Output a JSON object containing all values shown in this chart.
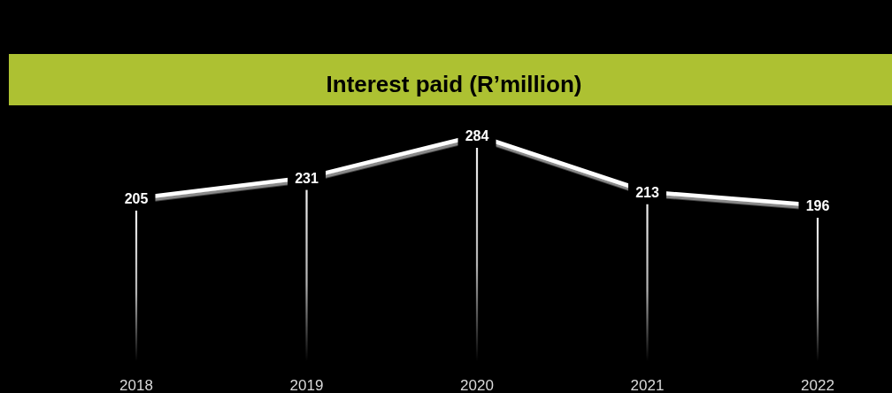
{
  "chart_data": {
    "type": "line",
    "title": "Interest paid (R’million)",
    "categories": [
      "2018",
      "2019",
      "2020",
      "2021",
      "2022"
    ],
    "series": [
      {
        "color": "#ffffff",
        "values": [
          205,
          231,
          284,
          213,
          196
        ]
      }
    ],
    "data_labels": true,
    "grid": "x"
  }
}
